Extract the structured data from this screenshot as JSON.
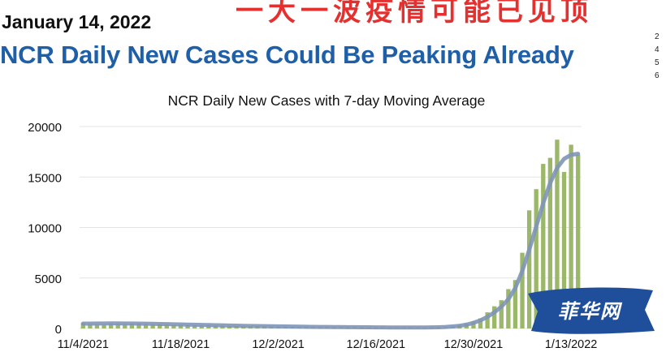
{
  "header": {
    "date": "January 14, 2022",
    "headline": "NCR Daily New Cases Could Be Peaking Already",
    "red_banner": "一大一波疫情可能已见顶",
    "side_text": [
      "2",
      "4",
      "5",
      "6"
    ]
  },
  "watermark": {
    "text": "菲华网"
  },
  "colors": {
    "headline": "#1f5fa8",
    "bar": "#9bb86a",
    "moving_average": "#7f95b8",
    "red_banner": "#e53030",
    "watermark_bg": "#1f4f9a"
  },
  "chart_data": {
    "type": "bar",
    "title": "NCR Daily New Cases with 7-day Moving Average",
    "xlabel": "",
    "ylabel": "",
    "ylim": [
      0,
      20000
    ],
    "y_ticks": [
      0,
      5000,
      10000,
      15000,
      20000
    ],
    "x_tick_labels": [
      "11/4/2021",
      "11/18/2021",
      "12/2/2021",
      "12/16/2021",
      "12/30/2021",
      "1/13/2022"
    ],
    "x_tick_dates": [
      "2021-11-04",
      "2021-11-18",
      "2021-12-02",
      "2021-12-16",
      "2021-12-30",
      "2022-01-13"
    ],
    "grid": true,
    "legend": "none",
    "x": [
      "2021-11-04",
      "2021-11-05",
      "2021-11-06",
      "2021-11-07",
      "2021-11-08",
      "2021-11-09",
      "2021-11-10",
      "2021-11-11",
      "2021-11-12",
      "2021-11-13",
      "2021-11-14",
      "2021-11-15",
      "2021-11-16",
      "2021-11-17",
      "2021-11-18",
      "2021-11-19",
      "2021-11-20",
      "2021-11-21",
      "2021-11-22",
      "2021-11-23",
      "2021-11-24",
      "2021-11-25",
      "2021-11-26",
      "2021-11-27",
      "2021-11-28",
      "2021-11-29",
      "2021-11-30",
      "2021-12-01",
      "2021-12-02",
      "2021-12-03",
      "2021-12-04",
      "2021-12-05",
      "2021-12-06",
      "2021-12-07",
      "2021-12-08",
      "2021-12-09",
      "2021-12-10",
      "2021-12-11",
      "2021-12-12",
      "2021-12-13",
      "2021-12-14",
      "2021-12-15",
      "2021-12-16",
      "2021-12-17",
      "2021-12-18",
      "2021-12-19",
      "2021-12-20",
      "2021-12-21",
      "2021-12-22",
      "2021-12-23",
      "2021-12-24",
      "2021-12-25",
      "2021-12-26",
      "2021-12-27",
      "2021-12-28",
      "2021-12-29",
      "2021-12-30",
      "2021-12-31",
      "2022-01-01",
      "2022-01-02",
      "2022-01-03",
      "2022-01-04",
      "2022-01-05",
      "2022-01-06",
      "2022-01-07",
      "2022-01-08",
      "2022-01-09",
      "2022-01-10",
      "2022-01-11",
      "2022-01-12",
      "2022-01-13",
      "2022-01-14"
    ],
    "series": [
      {
        "type": "bar",
        "values": [
          550,
          450,
          420,
          400,
          500,
          480,
          450,
          480,
          500,
          430,
          400,
          420,
          380,
          360,
          350,
          330,
          310,
          300,
          320,
          290,
          270,
          250,
          240,
          230,
          220,
          210,
          200,
          190,
          180,
          170,
          160,
          150,
          150,
          140,
          130,
          130,
          120,
          120,
          110,
          110,
          100,
          100,
          100,
          100,
          90,
          90,
          90,
          100,
          100,
          100,
          110,
          120,
          150,
          200,
          350,
          500,
          700,
          1000,
          1600,
          2200,
          2800,
          3900,
          4800,
          7500,
          11700,
          13800,
          16300,
          16900,
          18700,
          15500,
          18200,
          17200
        ]
      },
      {
        "type": "line",
        "values": [
          480,
          485,
          490,
          495,
          500,
          500,
          495,
          490,
          480,
          470,
          460,
          445,
          430,
          415,
          400,
          385,
          370,
          355,
          340,
          325,
          310,
          295,
          280,
          265,
          250,
          240,
          230,
          220,
          210,
          200,
          190,
          180,
          170,
          160,
          155,
          150,
          145,
          140,
          135,
          130,
          125,
          120,
          115,
          110,
          105,
          100,
          100,
          100,
          100,
          105,
          110,
          125,
          155,
          200,
          260,
          380,
          560,
          800,
          1150,
          1600,
          2150,
          2900,
          4000,
          5700,
          7800,
          10100,
          12400,
          14400,
          15900,
          16800,
          17200,
          17300
        ]
      }
    ]
  }
}
